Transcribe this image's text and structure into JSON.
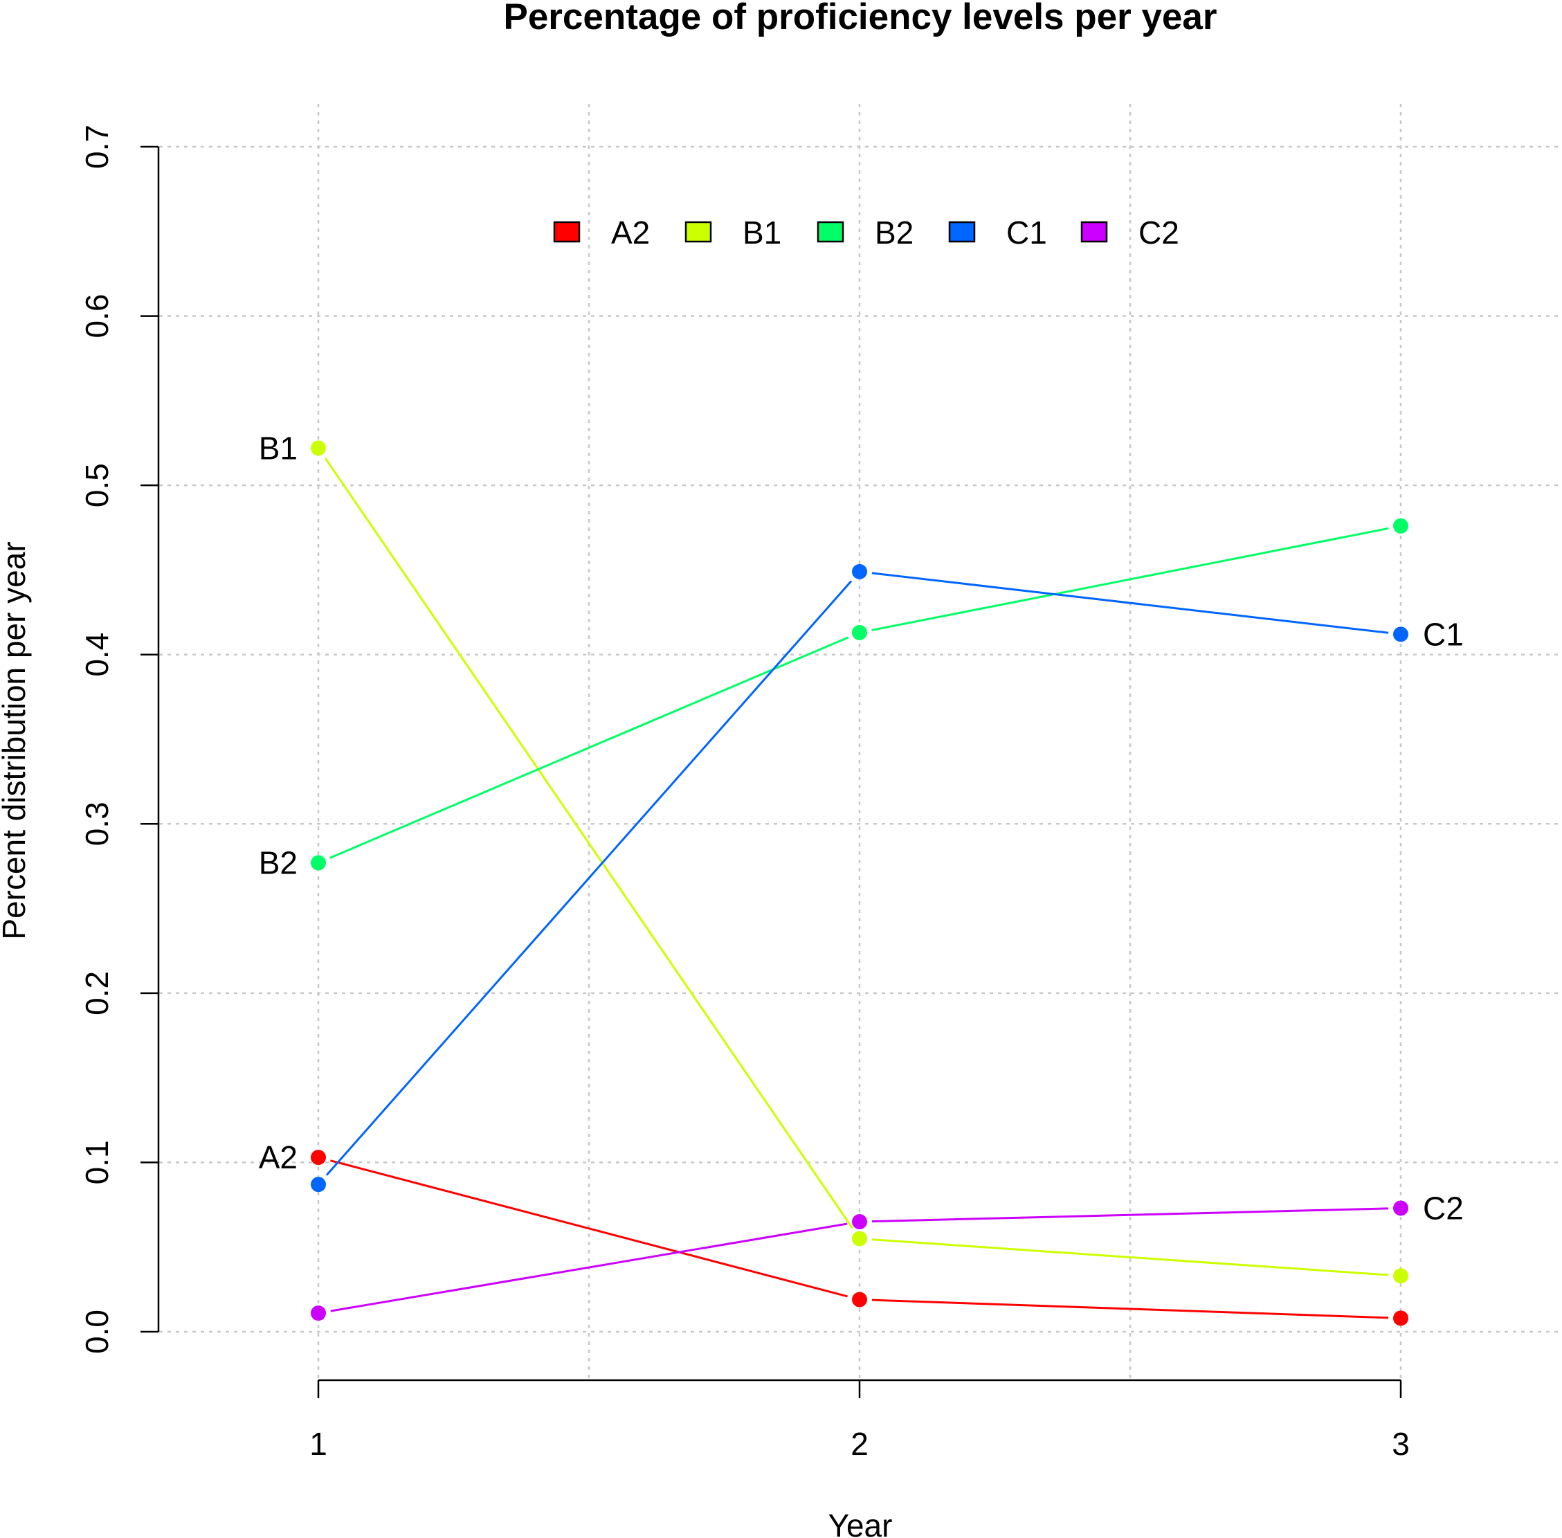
{
  "chart_data": {
    "type": "line",
    "title": "Percentage of proficiency levels per year",
    "xlabel": "Year",
    "ylabel": "Percent distribution per year",
    "x": [
      1,
      2,
      3
    ],
    "x_tick_labels": [
      "1",
      "2",
      "3"
    ],
    "ylim": [
      0,
      0.7
    ],
    "y_ticks": [
      0,
      0.1,
      0.2,
      0.3,
      0.4,
      0.5,
      0.6,
      0.7
    ],
    "y_tick_labels": [
      "0.0",
      "0.1",
      "0.2",
      "0.3",
      "0.4",
      "0.5",
      "0.6",
      "0.7"
    ],
    "grid": true,
    "legend_position": "top",
    "series": [
      {
        "name": "A2",
        "color": "#ff0000",
        "values": [
          0.103,
          0.019,
          0.008
        ],
        "end_label": "A2",
        "end_label_side": "left"
      },
      {
        "name": "B1",
        "color": "#ccff00",
        "values": [
          0.522,
          0.055,
          0.033
        ],
        "end_label": "B1",
        "end_label_side": "left"
      },
      {
        "name": "B2",
        "color": "#00ff66",
        "values": [
          0.277,
          0.413,
          0.476
        ],
        "end_label": "B2",
        "end_label_side": "left"
      },
      {
        "name": "C1",
        "color": "#0066ff",
        "values": [
          0.087,
          0.449,
          0.412
        ],
        "end_label": "C1",
        "end_label_side": "right"
      },
      {
        "name": "C2",
        "color": "#cc00ff",
        "values": [
          0.011,
          0.065,
          0.073
        ],
        "end_label": "C2",
        "end_label_side": "right"
      }
    ]
  }
}
